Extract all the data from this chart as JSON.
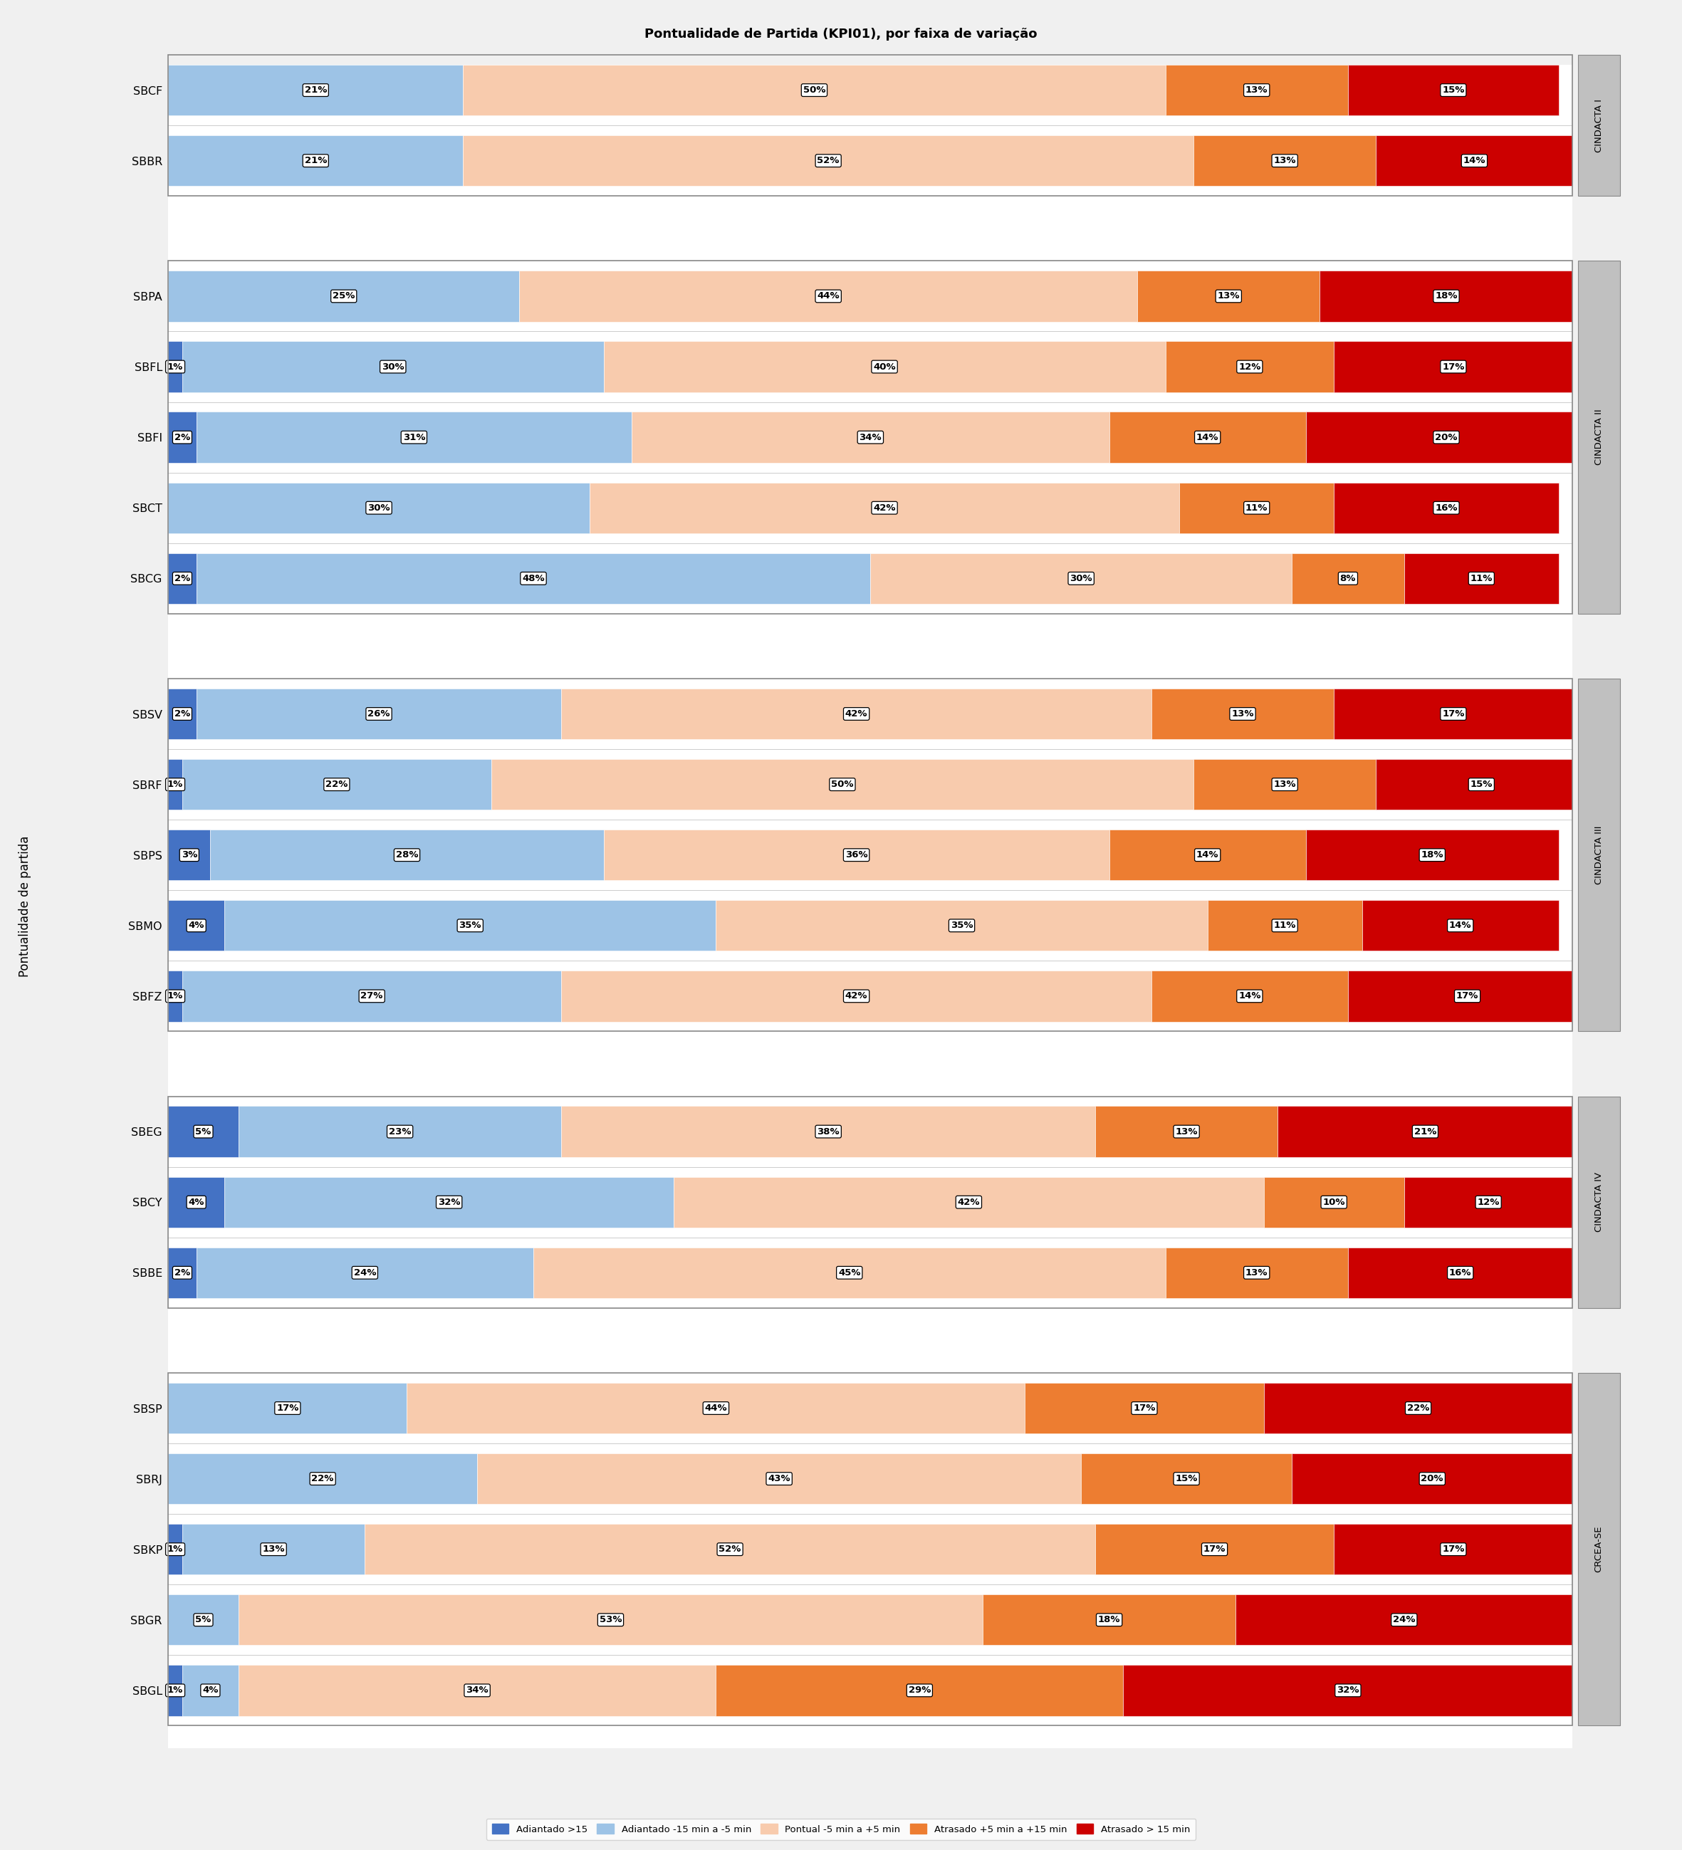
{
  "title": "Pontualidade de Partida (KPI01), por faixa de variação",
  "ylabel": "Pontualidade de partida",
  "groups": [
    {
      "label": "CINDACTA I",
      "bars": [
        {
          "airport": "SBCF",
          "v1": 0,
          "v2": 21,
          "v3": 50,
          "v4": 13,
          "v5": 15
        },
        {
          "airport": "SBBR",
          "v1": 0,
          "v2": 21,
          "v3": 52,
          "v4": 13,
          "v5": 14
        }
      ]
    },
    {
      "label": "CINDACTA II",
      "bars": [
        {
          "airport": "SBPA",
          "v1": 0,
          "v2": 25,
          "v3": 44,
          "v4": 13,
          "v5": 18
        },
        {
          "airport": "SBFL",
          "v1": 1,
          "v2": 30,
          "v3": 40,
          "v4": 12,
          "v5": 17
        },
        {
          "airport": "SBFI",
          "v1": 2,
          "v2": 31,
          "v3": 34,
          "v4": 14,
          "v5": 20
        },
        {
          "airport": "SBCT",
          "v1": 0,
          "v2": 30,
          "v3": 42,
          "v4": 11,
          "v5": 16
        },
        {
          "airport": "SBCG",
          "v1": 2,
          "v2": 48,
          "v3": 30,
          "v4": 8,
          "v5": 11
        }
      ]
    },
    {
      "label": "CINDACTA III",
      "bars": [
        {
          "airport": "SBSV",
          "v1": 2,
          "v2": 26,
          "v3": 42,
          "v4": 13,
          "v5": 17
        },
        {
          "airport": "SBRF",
          "v1": 1,
          "v2": 22,
          "v3": 50,
          "v4": 13,
          "v5": 15
        },
        {
          "airport": "SBPS",
          "v1": 3,
          "v2": 28,
          "v3": 36,
          "v4": 14,
          "v5": 18
        },
        {
          "airport": "SBMO",
          "v1": 4,
          "v2": 35,
          "v3": 35,
          "v4": 11,
          "v5": 14
        },
        {
          "airport": "SBFZ",
          "v1": 1,
          "v2": 27,
          "v3": 42,
          "v4": 14,
          "v5": 17
        }
      ]
    },
    {
      "label": "CINDACTA IV",
      "bars": [
        {
          "airport": "SBEG",
          "v1": 5,
          "v2": 23,
          "v3": 38,
          "v4": 13,
          "v5": 21
        },
        {
          "airport": "SBCY",
          "v1": 4,
          "v2": 32,
          "v3": 42,
          "v4": 10,
          "v5": 12
        },
        {
          "airport": "SBBE",
          "v1": 2,
          "v2": 24,
          "v3": 45,
          "v4": 13,
          "v5": 16
        }
      ]
    },
    {
      "label": "CRCEA-SE",
      "bars": [
        {
          "airport": "SBSP",
          "v1": 0,
          "v2": 17,
          "v3": 44,
          "v4": 17,
          "v5": 22
        },
        {
          "airport": "SBRJ",
          "v1": 0,
          "v2": 22,
          "v3": 43,
          "v4": 15,
          "v5": 20
        },
        {
          "airport": "SBKP",
          "v1": 1,
          "v2": 13,
          "v3": 52,
          "v4": 17,
          "v5": 17
        },
        {
          "airport": "SBGR",
          "v1": 0,
          "v2": 5,
          "v3": 53,
          "v4": 18,
          "v5": 24
        },
        {
          "airport": "SBGL",
          "v1": 1,
          "v2": 4,
          "v3": 34,
          "v4": 29,
          "v5": 32
        }
      ]
    }
  ],
  "colors": [
    "#4472C4",
    "#9DC3E6",
    "#F8CBAD",
    "#ED7D31",
    "#CC0000"
  ],
  "legend_labels": [
    "Adiantado >15",
    "Adiantado -15 min a -5 min",
    "Pontual -5 min a +5 min",
    "Atrasado +5 min a +15 min",
    "Atrasado > 15 min"
  ],
  "label_fontsize": 11,
  "bar_label_fontsize": 10,
  "group_label_fontsize": 10,
  "title_fontsize": 13
}
